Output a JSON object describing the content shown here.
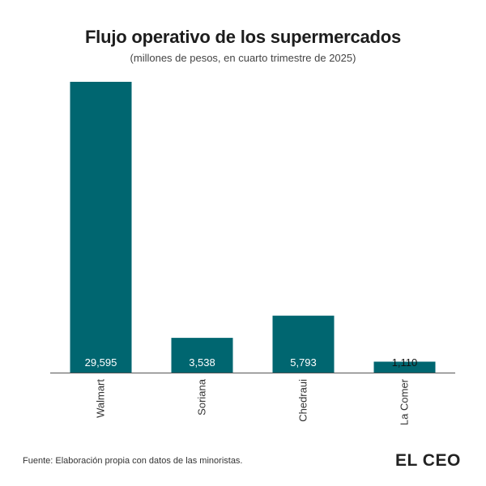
{
  "header": {
    "title": "Flujo operativo de los supermercados",
    "subtitle": "(millones de pesos, en cuarto trimestre de 2025)"
  },
  "footer": {
    "source": "Fuente: Elaboración propia con datos de las minoristas.",
    "logo_text": "EL CEO"
  },
  "colors": {
    "bar": "#006670",
    "axis": "#555555"
  },
  "chart_data": {
    "type": "bar",
    "title": "Flujo operativo de los supermercados",
    "subtitle": "(millones de pesos, en cuarto trimestre de 2025)",
    "categories": [
      "Walmart",
      "Soriana",
      "Chedraui",
      "La Comer"
    ],
    "values": [
      29595,
      3538,
      5793,
      1110
    ],
    "data_labels": [
      "29,595",
      "3,538",
      "5,793",
      "1,110"
    ],
    "xlabel": "",
    "ylabel": "",
    "ylim": [
      0,
      30000
    ],
    "grid": false,
    "legend": "none"
  }
}
